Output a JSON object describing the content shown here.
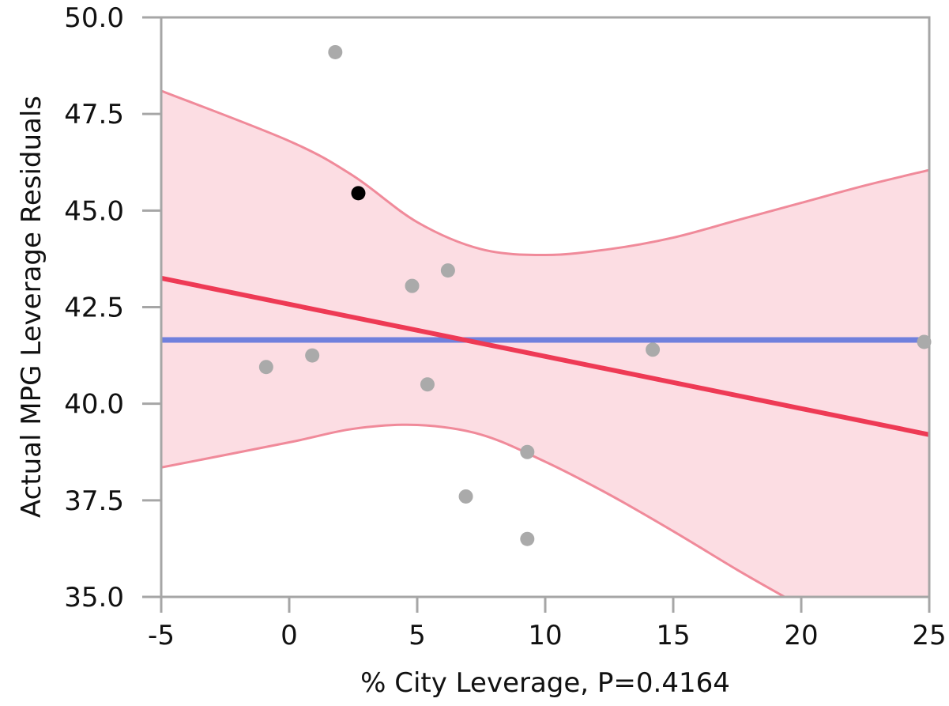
{
  "chart_data": {
    "type": "scatter",
    "title": "",
    "xlabel": "% City Leverage, P=0.4164",
    "ylabel": "Actual MPG Leverage Residuals",
    "xlim": [
      -5,
      25
    ],
    "ylim": [
      35.0,
      50.0
    ],
    "x_ticks": [
      "-5",
      "0",
      "5",
      "10",
      "15",
      "20",
      "25"
    ],
    "y_ticks": [
      "35.0",
      "37.5",
      "40.0",
      "42.5",
      "45.0",
      "47.5",
      "50.0"
    ],
    "grid": false,
    "legend": "none",
    "points": [
      {
        "x": 1.8,
        "y": 49.1,
        "highlighted": false
      },
      {
        "x": 2.7,
        "y": 45.45,
        "highlighted": true
      },
      {
        "x": 6.2,
        "y": 43.45,
        "highlighted": false
      },
      {
        "x": 4.8,
        "y": 43.05,
        "highlighted": false
      },
      {
        "x": -0.9,
        "y": 40.95,
        "highlighted": false
      },
      {
        "x": 0.9,
        "y": 41.25,
        "highlighted": false
      },
      {
        "x": 5.4,
        "y": 40.5,
        "highlighted": false
      },
      {
        "x": 14.2,
        "y": 41.4,
        "highlighted": false
      },
      {
        "x": 24.8,
        "y": 41.6,
        "highlighted": false
      },
      {
        "x": 9.3,
        "y": 38.75,
        "highlighted": false
      },
      {
        "x": 6.9,
        "y": 37.6,
        "highlighted": false
      },
      {
        "x": 9.3,
        "y": 36.5,
        "highlighted": false
      }
    ],
    "fit_line": {
      "from": [
        -5,
        43.25
      ],
      "to": [
        25,
        39.2
      ]
    },
    "mean_line": {
      "y": 41.65
    },
    "confidence_band": {
      "upper": [
        [
          -5,
          48.1
        ],
        [
          0,
          46.8
        ],
        [
          2.5,
          45.9
        ],
        [
          5,
          44.7
        ],
        [
          7.5,
          44.0
        ],
        [
          10,
          43.85
        ],
        [
          12.5,
          44.0
        ],
        [
          15,
          44.3
        ],
        [
          17.5,
          44.75
        ],
        [
          20,
          45.2
        ],
        [
          22.5,
          45.65
        ],
        [
          25,
          46.05
        ]
      ],
      "lower": [
        [
          -5,
          38.35
        ],
        [
          0,
          39.0
        ],
        [
          2.5,
          39.35
        ],
        [
          5,
          39.45
        ],
        [
          7.5,
          39.2
        ],
        [
          10,
          38.5
        ],
        [
          12.5,
          37.65
        ],
        [
          15,
          36.7
        ],
        [
          17.5,
          35.7
        ],
        [
          19.35,
          35.0
        ]
      ]
    },
    "colors": {
      "points": "#aaaaaa",
      "highlight_point": "#000000",
      "fit_line": "#ee3a55",
      "band_fill": "#fcdde3",
      "band_edge": "#f08a9a",
      "mean_line": "#7080dd",
      "axis": "#a6a6a6"
    }
  }
}
